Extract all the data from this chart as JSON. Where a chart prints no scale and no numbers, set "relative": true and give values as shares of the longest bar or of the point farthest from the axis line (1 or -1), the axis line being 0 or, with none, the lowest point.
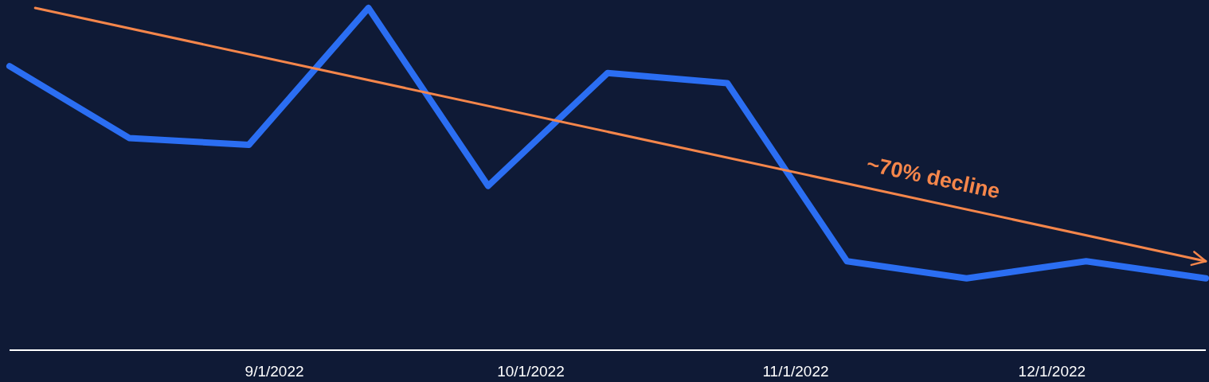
{
  "chart_data": {
    "type": "line",
    "relative": true,
    "x": [
      "2022-08-01",
      "2022-08-15",
      "2022-08-29",
      "2022-09-12",
      "2022-09-26",
      "2022-10-10",
      "2022-10-24",
      "2022-11-07",
      "2022-11-21",
      "2022-12-05",
      "2022-12-19"
    ],
    "series": [
      {
        "color": "#2b6ef2",
        "values": [
          0.83,
          0.62,
          0.6,
          1,
          0.48,
          0.81,
          0.78,
          0.26,
          0.21,
          0.26,
          0.21
        ]
      },
      {
        "type": "line",
        "color": "#f5864b",
        "x": [
          "2022-08-04",
          "2022-12-19"
        ],
        "values": [
          1,
          0.26
        ]
      }
    ],
    "xlim": [
      "2022-08-01",
      "2022-12-19"
    ],
    "xticks": [
      {
        "value": "2022-09-01",
        "label": "9/1/2022"
      },
      {
        "value": "2022-10-01",
        "label": "10/1/2022"
      },
      {
        "value": "2022-11-01",
        "label": "11/1/2022"
      },
      {
        "value": "2022-12-01",
        "label": "12/1/2022"
      }
    ],
    "tick_labels": "x",
    "marker": "none",
    "line_style": "solid",
    "annotations": [
      "~70% decline"
    ]
  }
}
